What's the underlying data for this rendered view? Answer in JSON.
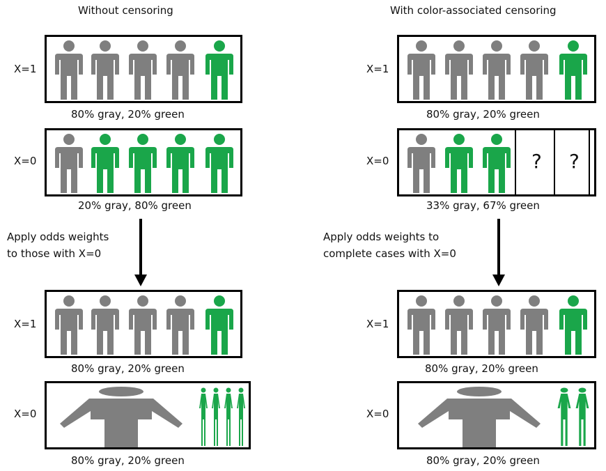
{
  "colors": {
    "gray": "#7f7f7f",
    "green": "#1aa64a",
    "border": "#000000"
  },
  "left": {
    "title": "Without censoring",
    "row1": {
      "label": "X=1",
      "caption": "80% gray, 20% green"
    },
    "row2": {
      "label": "X=0",
      "caption": "20% gray, 80% green"
    },
    "step": {
      "line1": "Apply odds weights",
      "line2": "to those with X=0"
    },
    "row3": {
      "label": "X=1",
      "caption": "80% gray, 20% green"
    },
    "row4": {
      "label": "X=0",
      "caption": "80% gray, 20% green"
    }
  },
  "right": {
    "title": "With color-associated censoring",
    "row1": {
      "label": "X=1",
      "caption": "80% gray, 20% green"
    },
    "row2": {
      "label": "X=0",
      "caption": "33% gray, 67% green",
      "unknown1": "?",
      "unknown2": "?"
    },
    "step": {
      "line1": "Apply odds weights to",
      "line2": "complete cases with X=0"
    },
    "row3": {
      "label": "X=1",
      "caption": "80% gray, 20% green"
    },
    "row4": {
      "label": "X=0",
      "caption": "80% gray, 20% green"
    }
  }
}
